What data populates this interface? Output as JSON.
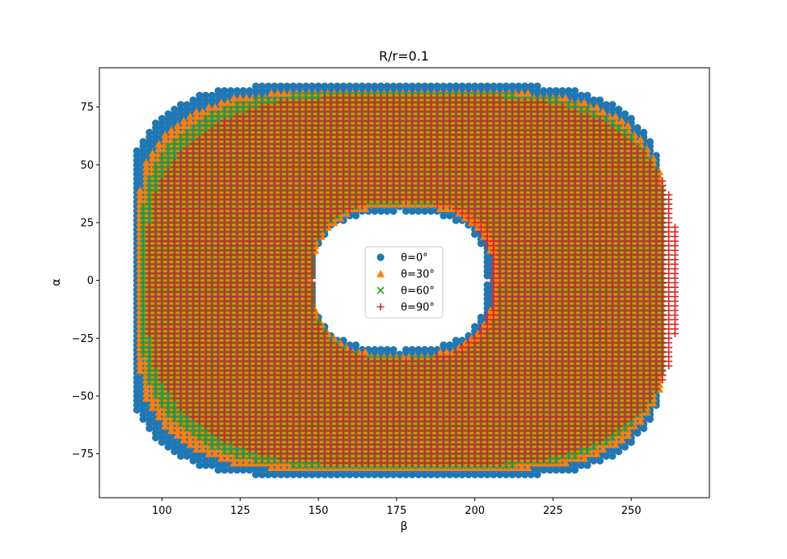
{
  "chart_data": {
    "type": "scatter",
    "title": "R/r=0.1",
    "xlabel": "β",
    "ylabel": "α",
    "xlim": [
      80,
      275
    ],
    "ylim": [
      -94,
      92
    ],
    "xticks": [
      100,
      125,
      150,
      175,
      200,
      225,
      250
    ],
    "yticks": [
      -75,
      -50,
      -25,
      0,
      25,
      50,
      75
    ],
    "xtick_labels": [
      "100",
      "125",
      "150",
      "175",
      "200",
      "225",
      "250"
    ],
    "ytick_labels": [
      "−75",
      "−50",
      "−25",
      "0",
      "25",
      "50",
      "75"
    ],
    "grid": false,
    "legend_position": "center",
    "series_shape": "annular region (filled ring) sampled on a grid with step 2",
    "series": [
      {
        "name": "θ=0°",
        "marker": "circle",
        "color": "#1f77b4",
        "outer": {
          "x_min": 90.5,
          "x_max": 259,
          "y_max": 84,
          "corner_radius": 38
        },
        "inner": {
          "x_min": 148,
          "x_max": 204,
          "y_max": 30
        }
      },
      {
        "name": "θ=30°",
        "marker": "triangle",
        "color": "#ff7f0e",
        "outer": {
          "x_min": 93,
          "x_max": 260,
          "y_max": 81,
          "corner_radius": 42
        },
        "inner": {
          "x_min": 148,
          "x_max": 206,
          "y_max": 32
        }
      },
      {
        "name": "θ=60°",
        "marker": "x",
        "color": "#2ca02c",
        "outer": {
          "x_min": 94,
          "x_max": 261,
          "y_max": 80,
          "corner_radius": 48
        },
        "inner": {
          "x_min": 148,
          "x_max": 208,
          "y_max": 34
        }
      },
      {
        "name": "θ=90°",
        "marker": "plus",
        "color": "#d62728",
        "outer": {
          "x_min": 96,
          "x_max": 264,
          "y_max": 79,
          "corner_radius": 55
        },
        "inner": {
          "x_min": 148,
          "x_max": 205,
          "y_max": 34
        }
      }
    ]
  }
}
